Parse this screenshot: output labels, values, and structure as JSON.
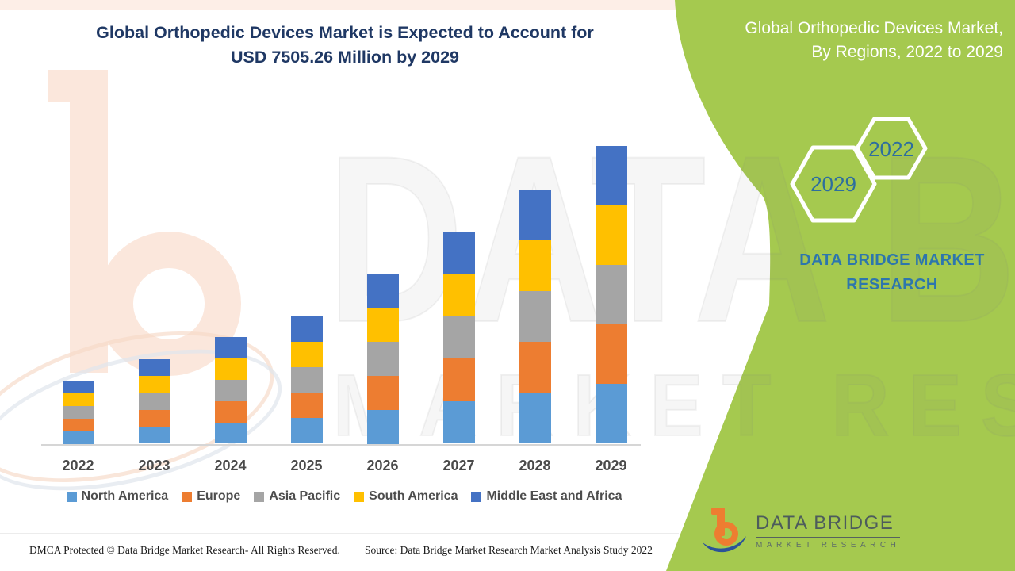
{
  "header": {
    "title_line1": "Global Orthopedic Devices Market is Expected to Account for",
    "title_line2": "USD 7505.26 Million by 2029",
    "title_color": "#1f3864"
  },
  "side_panel": {
    "background": "#a5c94f",
    "title_line1": "Global Orthopedic Devices Market,",
    "title_line2": "By Regions, 2022 to 2029",
    "hexagon_labels": {
      "large": "2029",
      "small": "2022"
    },
    "brand_line1": "DATA BRIDGE MARKET",
    "brand_line2": "RESEARCH",
    "brand_color": "#2d76ad"
  },
  "watermark": {
    "line1": "DATA BRIDGE",
    "line2": "MARKET RESEARCH"
  },
  "logo": {
    "name": "DATA BRIDGE",
    "subtitle": "MARKET RESEARCH",
    "orange": "#ED7D31",
    "blue": "#2b5399"
  },
  "footer": {
    "left": "DMCA Protected © Data Bridge Market Research- All Rights Reserved.",
    "right": "Source: Data Bridge Market Research Market Analysis Study 2022"
  },
  "chart_data": {
    "type": "bar",
    "stacked": true,
    "title": "Global Orthopedic Devices Market is Expected to Account for USD 7505.26 Million by 2029",
    "value_unit": "USD Million",
    "categories": [
      "2022",
      "2023",
      "2024",
      "2025",
      "2026",
      "2027",
      "2028",
      "2029"
    ],
    "series": [
      {
        "name": "North America",
        "color": "#5B9BD5",
        "values": [
          320,
          428,
          538,
          644,
          860,
          1072,
          1281,
          1501.05
        ]
      },
      {
        "name": "Europe",
        "color": "#ED7D31",
        "values": [
          320,
          428,
          538,
          644,
          860,
          1072,
          1281,
          1501.05
        ]
      },
      {
        "name": "Asia Pacific",
        "color": "#A5A5A5",
        "values": [
          320,
          428,
          538,
          644,
          860,
          1072,
          1281,
          1501.05
        ]
      },
      {
        "name": "South America",
        "color": "#FFC000",
        "values": [
          320,
          428,
          538,
          644,
          860,
          1072,
          1281,
          1501.05
        ]
      },
      {
        "name": "Middle East and Africa",
        "color": "#4472C4",
        "values": [
          320,
          428,
          538,
          644,
          860,
          1072,
          1281,
          1501.06
        ]
      }
    ],
    "totals": [
      1600,
      2140,
      2690,
      3220,
      4300,
      5360,
      6405,
      7505.26
    ],
    "xlabel": "",
    "ylabel": "",
    "gridlines": false,
    "y_axis_visible": false,
    "legend_position": "bottom"
  }
}
